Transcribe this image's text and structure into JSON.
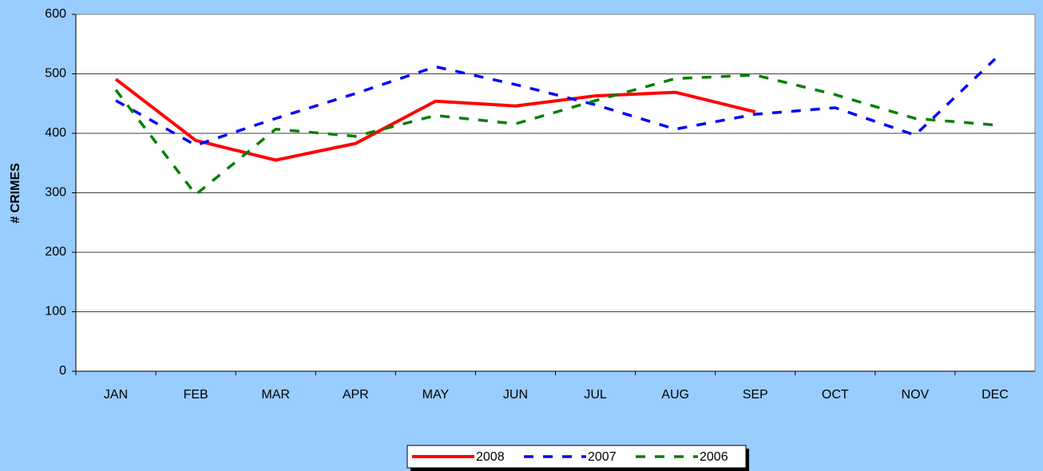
{
  "chart_data": {
    "type": "line",
    "y_label": "# CRIMES",
    "categories": [
      "JAN",
      "FEB",
      "MAR",
      "APR",
      "MAY",
      "JUN",
      "JUL",
      "AUG",
      "SEP",
      "OCT",
      "NOV",
      "DEC"
    ],
    "series": [
      {
        "name": "2008",
        "color": "#ff0000",
        "dash": "solid",
        "values": [
          491,
          388,
          355,
          383,
          454,
          446,
          463,
          469,
          436,
          null,
          null,
          null
        ]
      },
      {
        "name": "2007",
        "color": "#0000ff",
        "dash": "dashed",
        "values": [
          455,
          380,
          425,
          467,
          512,
          482,
          448,
          407,
          432,
          443,
          397,
          525
        ]
      },
      {
        "name": "2006",
        "color": "#008000",
        "dash": "dashed",
        "values": [
          473,
          297,
          407,
          395,
          430,
          416,
          455,
          492,
          498,
          465,
          425,
          414
        ]
      }
    ],
    "ylim": [
      0,
      600
    ],
    "yticks": [
      0,
      100,
      200,
      300,
      400,
      500,
      600
    ],
    "grid": true,
    "legend": "bottom"
  }
}
